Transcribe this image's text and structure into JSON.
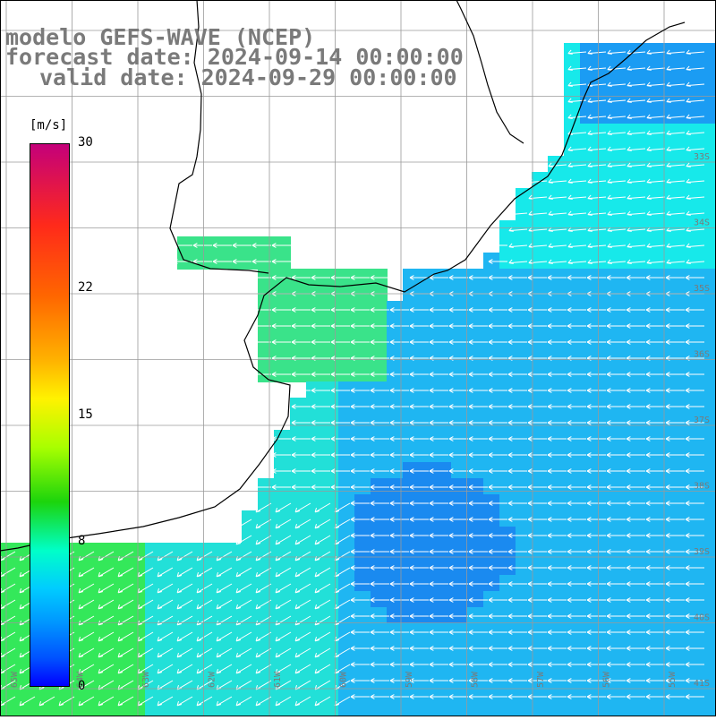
{
  "title": {
    "line1": "modelo GEFS-WAVE (NCEP)",
    "line2": "forecast date: 2024-09-14 00:00:00",
    "line3": "valid date: 2024-09-29 00:00:00"
  },
  "colorbar": {
    "units": "[m/s]",
    "ticks": [
      {
        "label": "30",
        "value": 30
      },
      {
        "label": "22",
        "value": 22
      },
      {
        "label": "15",
        "value": 15
      },
      {
        "label": "8",
        "value": 8
      },
      {
        "label": "0",
        "value": 0
      }
    ],
    "range": [
      0,
      30
    ]
  },
  "latitude_labels": [
    "33S",
    "34S",
    "35S",
    "36S",
    "37S",
    "38S",
    "39S",
    "40S",
    "41S"
  ],
  "longitude_labels": [
    "65W",
    "64W",
    "63W",
    "62W",
    "61W",
    "60W",
    "59W",
    "58W",
    "57W",
    "56W",
    "55W"
  ],
  "colors": {
    "land": "#ffffff",
    "coastline": "#000000",
    "grid": "#9a9a9a",
    "arrow": "#ffffff",
    "label": "#7a7a7a"
  }
}
